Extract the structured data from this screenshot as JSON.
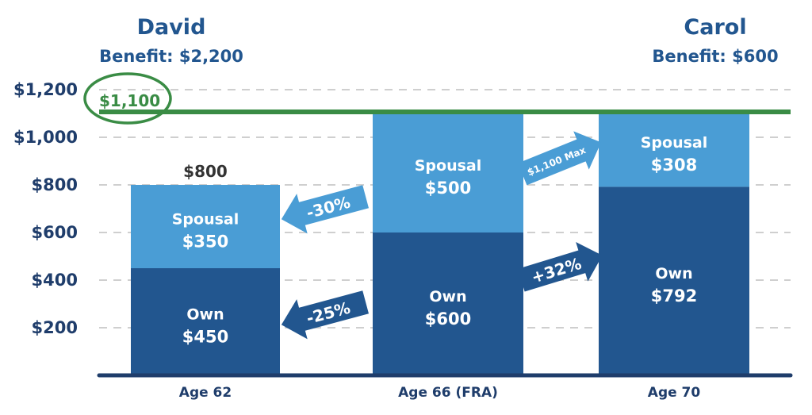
{
  "chart_data": {
    "type": "bar",
    "stacked": true,
    "categories": [
      "Age 62",
      "Age 66 (FRA)",
      "Age 70"
    ],
    "series": [
      {
        "name": "Own",
        "values": [
          450,
          600,
          792
        ],
        "color": "#22568f"
      },
      {
        "name": "Spousal",
        "values": [
          350,
          500,
          308
        ],
        "color": "#4a9dd5"
      }
    ],
    "bar_labels": [
      {
        "own": "$450",
        "spousal": "$350",
        "total": "$800"
      },
      {
        "own": "$600",
        "spousal": "$500",
        "total": ""
      },
      {
        "own": "$792",
        "spousal": "$308",
        "total": ""
      }
    ],
    "yticks": [
      200,
      400,
      600,
      800,
      1000,
      1200
    ],
    "ytick_labels": [
      "$200",
      "$400",
      "$600",
      "$800",
      "$1,000",
      "$1,200"
    ],
    "ylim": [
      0,
      1200
    ],
    "grid": true,
    "reference_line": {
      "value": 1100,
      "label": "$1,100",
      "color": "#3a8c45"
    },
    "people": {
      "left": {
        "name": "David",
        "benefit": "Benefit: $2,200"
      },
      "right": {
        "name": "Carol",
        "benefit": "Benefit: $600"
      }
    },
    "annotations": [
      {
        "text": "-30%",
        "direction": "left",
        "color": "#4a9dd5"
      },
      {
        "text": "-25%",
        "direction": "left",
        "color": "#22568f"
      },
      {
        "text": "$1,100 Max",
        "direction": "right",
        "color": "#4a9dd5"
      },
      {
        "text": "+32%",
        "direction": "right",
        "color": "#22568f"
      }
    ]
  }
}
